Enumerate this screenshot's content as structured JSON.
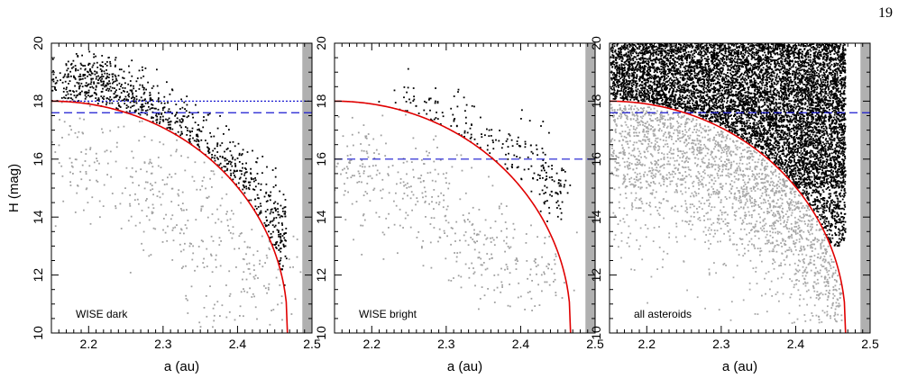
{
  "page_number": "19",
  "chart_data": [
    {
      "type": "scatter",
      "panel_label": "WISE dark",
      "xlabel": "a (au)",
      "ylabel": "H (mag)",
      "xlim": [
        2.15,
        2.5
      ],
      "ylim": [
        10,
        20
      ],
      "xticks": [
        2.2,
        2.3,
        2.4,
        2.5
      ],
      "yticks": [
        10,
        12,
        14,
        16,
        18,
        20
      ],
      "dashed_line_H": 17.6,
      "dotted_line_H": 18.0,
      "shaded_band_a": [
        2.487,
        2.5
      ],
      "series": [
        {
          "group": "above curve",
          "color": "#000000",
          "count": 900,
          "points": [
            [
              2.17,
              18.6
            ],
            [
              2.2,
              18.5
            ],
            [
              2.22,
              19.0
            ],
            [
              2.25,
              18.3
            ],
            [
              2.27,
              17.9
            ],
            [
              2.3,
              17.4
            ],
            [
              2.33,
              16.9
            ],
            [
              2.36,
              16.2
            ],
            [
              2.38,
              15.6
            ],
            [
              2.41,
              15.3
            ],
            [
              2.44,
              14.2
            ],
            [
              2.45,
              13.2
            ],
            [
              2.46,
              12.8
            ]
          ]
        },
        {
          "group": "below curve",
          "color": "#a0a0a0",
          "count": 400,
          "points": [
            [
              2.18,
              16.5
            ],
            [
              2.2,
              15.5
            ],
            [
              2.25,
              16.2
            ],
            [
              2.28,
              14.3
            ],
            [
              2.3,
              15.0
            ],
            [
              2.33,
              13.4
            ],
            [
              2.35,
              14.6
            ],
            [
              2.37,
              13.0
            ],
            [
              2.42,
              12.4
            ],
            [
              2.45,
              12.1
            ],
            [
              2.38,
              10.6
            ]
          ]
        }
      ],
      "curve": {
        "color": "#e00000",
        "H0": 18.0,
        "a_ref": 2.15,
        "a_cut": 2.467
      }
    },
    {
      "type": "scatter",
      "panel_label": "WISE bright",
      "xlabel": "a (au)",
      "ylabel": "",
      "xlim": [
        2.15,
        2.5
      ],
      "ylim": [
        10,
        20
      ],
      "xticks": [
        2.2,
        2.3,
        2.4,
        2.5
      ],
      "yticks": [
        10,
        12,
        14,
        16,
        18,
        20
      ],
      "dashed_line_H": 16.0,
      "shaded_band_a": [
        2.487,
        2.5
      ],
      "series": [
        {
          "group": "above curve",
          "color": "#000000",
          "count": 230,
          "points": [
            [
              2.26,
              17.8
            ],
            [
              2.3,
              17.5
            ],
            [
              2.33,
              16.6
            ],
            [
              2.36,
              16.2
            ],
            [
              2.4,
              16.5
            ],
            [
              2.42,
              15.5
            ],
            [
              2.44,
              15.0
            ],
            [
              2.46,
              14.7
            ]
          ]
        },
        {
          "group": "below curve",
          "color": "#a0a0a0",
          "count": 420,
          "points": [
            [
              2.18,
              16.2
            ],
            [
              2.2,
              15.0
            ],
            [
              2.25,
              14.7
            ],
            [
              2.27,
              15.3
            ],
            [
              2.3,
              14.0
            ],
            [
              2.33,
              13.2
            ],
            [
              2.36,
              12.7
            ],
            [
              2.4,
              12.2
            ],
            [
              2.44,
              12.4
            ]
          ]
        }
      ],
      "curve": {
        "color": "#e00000",
        "H0": 18.0,
        "a_ref": 2.15,
        "a_cut": 2.467
      }
    },
    {
      "type": "scatter",
      "panel_label": "all asteroids",
      "xlabel": "a (au)",
      "ylabel": "",
      "xlim": [
        2.15,
        2.5
      ],
      "ylim": [
        10,
        20
      ],
      "xticks": [
        2.2,
        2.3,
        2.4,
        2.5
      ],
      "yticks": [
        10,
        12,
        14,
        16,
        18,
        20
      ],
      "dashed_line_H": 17.6,
      "shaded_band_a": [
        2.487,
        2.5
      ],
      "series": [
        {
          "group": "above curve",
          "color": "#000000",
          "count": 8000,
          "points": [
            [
              2.16,
              19.9
            ],
            [
              2.2,
              19.2
            ],
            [
              2.25,
              18.5
            ],
            [
              2.3,
              17.8
            ],
            [
              2.35,
              17.4
            ],
            [
              2.4,
              16.5
            ],
            [
              2.43,
              15.0
            ],
            [
              2.45,
              13.5
            ],
            [
              2.46,
              12.9
            ]
          ]
        },
        {
          "group": "below curve",
          "color": "#a8a8a8",
          "count": 2200,
          "points": [
            [
              2.16,
              17.3
            ],
            [
              2.2,
              16.0
            ],
            [
              2.25,
              15.0
            ],
            [
              2.3,
              14.4
            ],
            [
              2.35,
              13.5
            ],
            [
              2.4,
              12.5
            ],
            [
              2.42,
              11.0
            ]
          ]
        }
      ],
      "curve": {
        "color": "#e00000",
        "H0": 18.0,
        "a_ref": 2.15,
        "a_cut": 2.467
      }
    }
  ]
}
